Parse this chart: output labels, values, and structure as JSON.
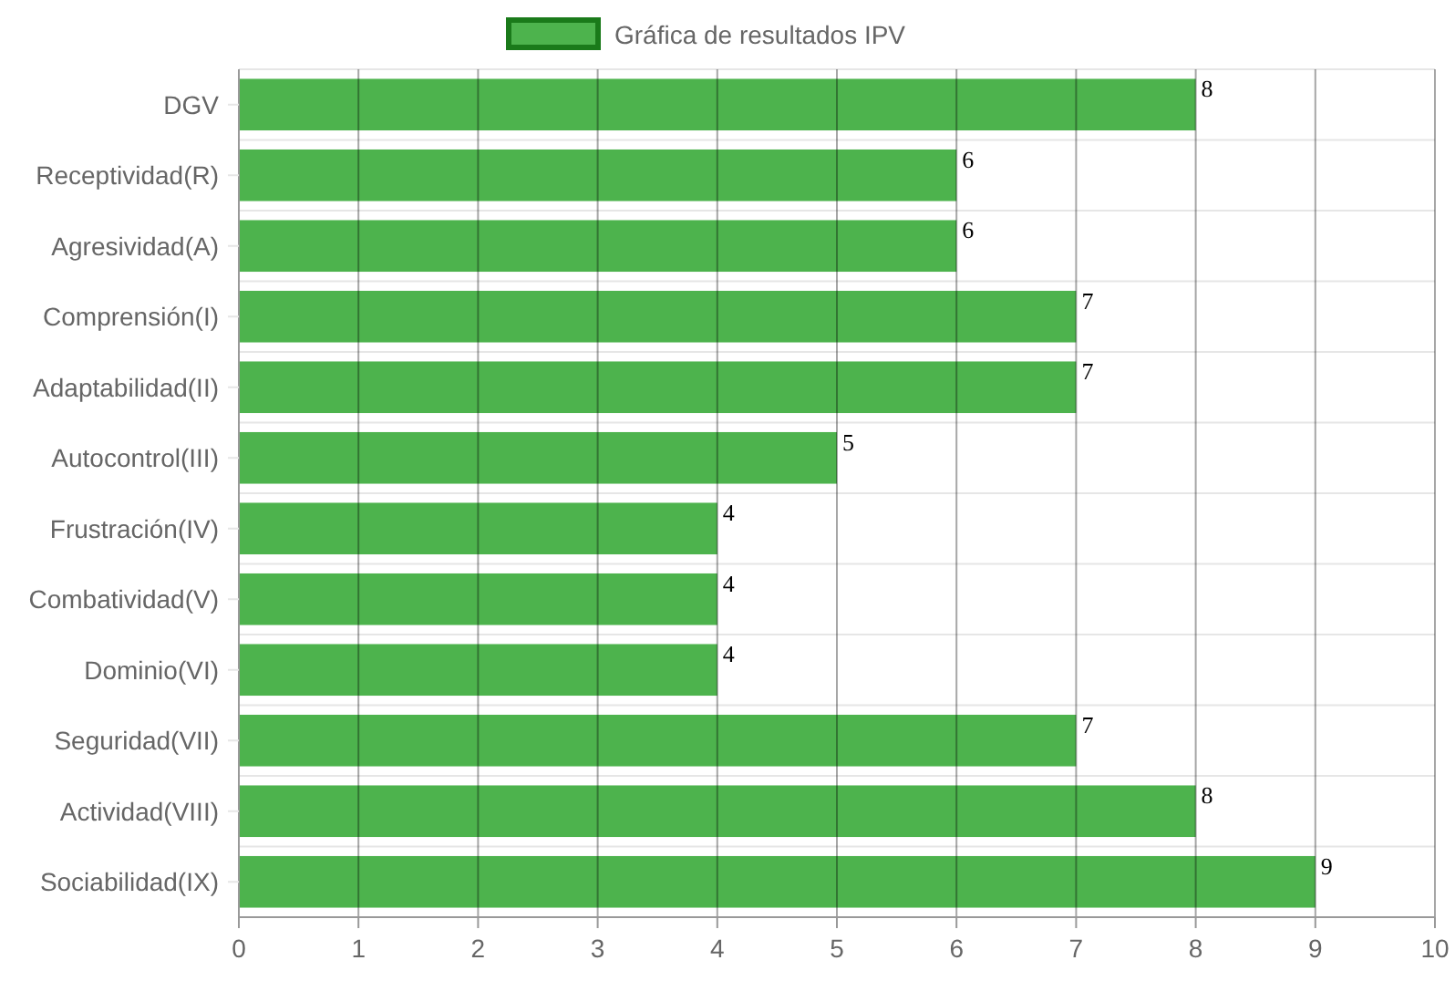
{
  "chart_data": {
    "type": "bar",
    "orientation": "horizontal",
    "categories": [
      "DGV",
      "Receptividad(R)",
      "Agresividad(A)",
      "Comprensión(I)",
      "Adaptabilidad(II)",
      "Autocontrol(III)",
      "Frustración(IV)",
      "Combatividad(V)",
      "Dominio(VI)",
      "Seguridad(VII)",
      "Actividad(VIII)",
      "Sociabilidad(IX)"
    ],
    "series": [
      {
        "name": "Gráfica de resultados IPV",
        "color": "#4db34d",
        "values": [
          8,
          6,
          6,
          7,
          7,
          5,
          4,
          4,
          4,
          7,
          8,
          9
        ]
      }
    ],
    "xlim": [
      0,
      10
    ],
    "xticks": [
      0,
      1,
      2,
      3,
      4,
      5,
      6,
      7,
      8,
      9,
      10
    ],
    "grid": true,
    "legend": "top",
    "data_labels": true
  }
}
